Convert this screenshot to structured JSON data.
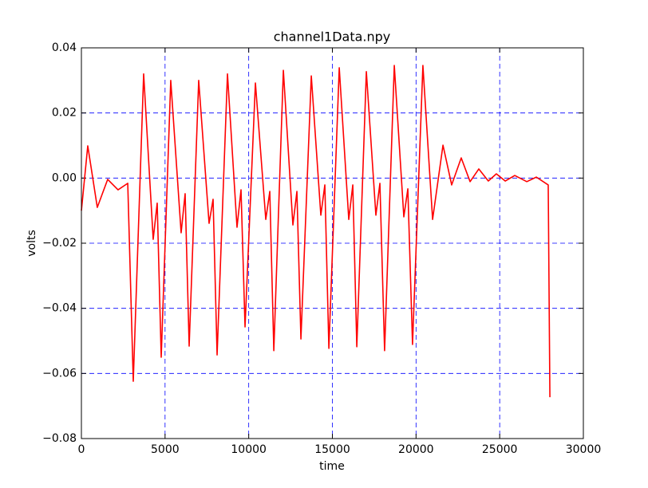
{
  "chart_data": {
    "type": "line",
    "title": "channel1Data.npy",
    "x_label": "time",
    "y_label": "volts",
    "color": "#ff0000",
    "grid": true,
    "grid_color": "#0000ff",
    "xlim": [
      0,
      30000
    ],
    "ylim": [
      -0.08,
      0.04
    ],
    "xticks": [
      0,
      5000,
      10000,
      15000,
      20000,
      25000,
      30000
    ],
    "yticks": [
      {
        "value": -0.08,
        "label": "−0.08"
      },
      {
        "value": -0.06,
        "label": "−0.06"
      },
      {
        "value": -0.04,
        "label": "−0.04"
      },
      {
        "value": -0.02,
        "label": "−0.02"
      },
      {
        "value": 0,
        "label": "0.00"
      },
      {
        "value": 0.02,
        "label": "0.02"
      },
      {
        "value": 0.04,
        "label": "0.04"
      }
    ],
    "x": [
      0,
      380,
      950,
      1570,
      2190,
      2770,
      3100,
      3720,
      4290,
      4530,
      4770,
      5340,
      5960,
      6200,
      6440,
      7010,
      7630,
      7870,
      8110,
      8730,
      9300,
      9540,
      9780,
      10400,
      11020,
      11260,
      11500,
      12070,
      12640,
      12880,
      13120,
      13740,
      14310,
      14550,
      14790,
      15410,
      15980,
      16220,
      16460,
      17030,
      17600,
      17840,
      18120,
      18700,
      19270,
      19510,
      19790,
      20410,
      20990,
      21610,
      22130,
      22700,
      23230,
      23750,
      24320,
      24800,
      25330,
      25900,
      26620,
      27190,
      27900,
      28000
    ],
    "values": [
      -0.01,
      0.0099,
      -0.009,
      -0.0004,
      -0.0036,
      -0.0016,
      -0.0624,
      0.032,
      -0.0188,
      -0.0077,
      -0.055,
      0.03,
      -0.0168,
      -0.0048,
      -0.0516,
      0.03,
      -0.0139,
      -0.0065,
      -0.0543,
      0.032,
      -0.0151,
      -0.0036,
      -0.0457,
      0.0292,
      -0.0127,
      -0.0041,
      -0.053,
      0.0331,
      -0.0144,
      -0.0041,
      -0.0494,
      0.0314,
      -0.0114,
      -0.0021,
      -0.0523,
      0.0339,
      -0.0127,
      -0.0021,
      -0.0518,
      0.0327,
      -0.0114,
      -0.0016,
      -0.053,
      0.0346,
      -0.0119,
      -0.0033,
      -0.0511,
      0.0346,
      -0.0127,
      0.0101,
      -0.0021,
      0.0062,
      -0.0011,
      0.0028,
      -0.0009,
      0.0013,
      -0.0009,
      0.0008,
      -0.0011,
      0.0003,
      -0.0021,
      -0.0673
    ]
  }
}
